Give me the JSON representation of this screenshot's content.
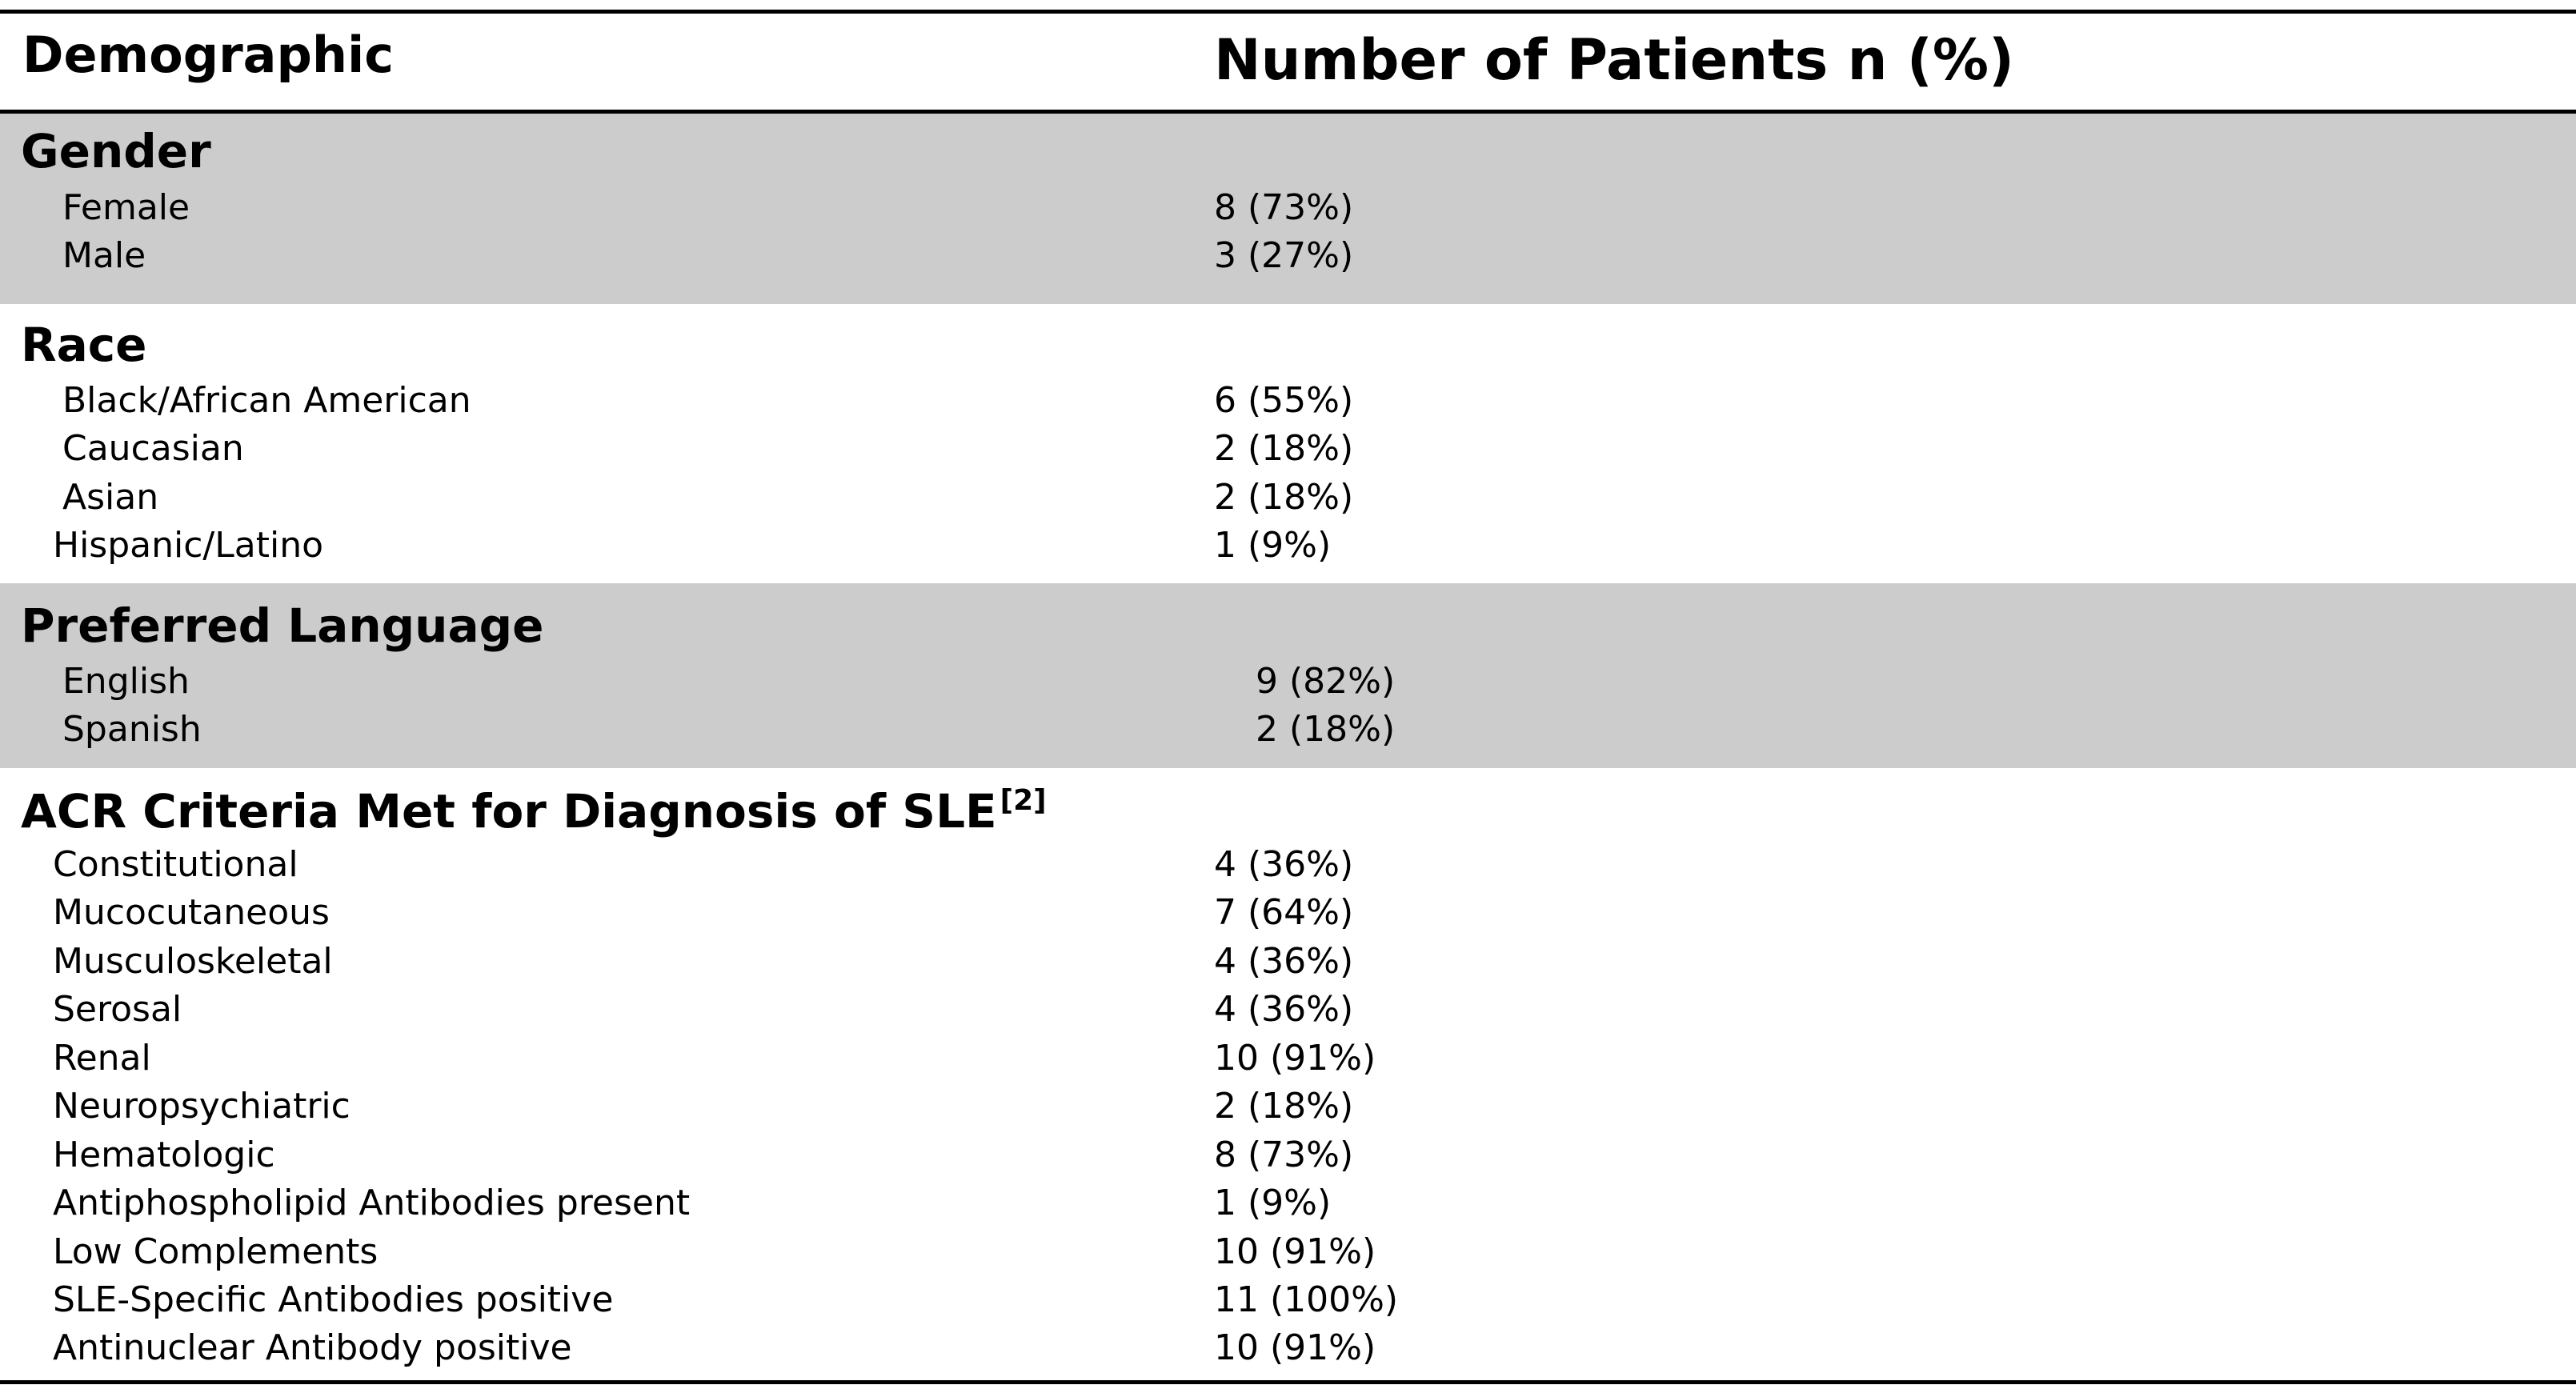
{
  "table": {
    "headers": {
      "demographic": "Demographic",
      "patients": "Number of Patients n (%)"
    },
    "sections": [
      {
        "title": "Gender",
        "rows": [
          {
            "label": "Female",
            "value": "8 (73%)"
          },
          {
            "label": "Male",
            "value": "3 (27%)"
          }
        ]
      },
      {
        "title": "Race",
        "rows": [
          {
            "label": "Black/African American",
            "value": "6 (55%)"
          },
          {
            "label": "Caucasian",
            "value": "2 (18%)"
          },
          {
            "label": "Asian",
            "value": "2 (18%)"
          },
          {
            "label": "Hispanic/Latino",
            "value": "1 (9%)"
          }
        ]
      },
      {
        "title": "Preferred Language",
        "rows": [
          {
            "label": "English",
            "value": "9 (82%)"
          },
          {
            "label": "Spanish",
            "value": "2 (18%)"
          }
        ]
      },
      {
        "title": "ACR Criteria Met for Diagnosis of SLE",
        "title_sup": "[2]",
        "rows": [
          {
            "label": "Constitutional",
            "value": "4 (36%)"
          },
          {
            "label": "Mucocutaneous",
            "value": "7 (64%)"
          },
          {
            "label": "Musculoskeletal",
            "value": "4 (36%)"
          },
          {
            "label": "Serosal",
            "value": "4 (36%)"
          },
          {
            "label": "Renal",
            "value": "10 (91%)"
          },
          {
            "label": "Neuropsychiatric",
            "value": "2 (18%)"
          },
          {
            "label": "Hematologic",
            "value": "8 (73%)"
          },
          {
            "label": "Antiphospholipid Antibodies present",
            "value": "1 (9%)"
          },
          {
            "label": "Low Complements",
            "value": "10 (91%)"
          },
          {
            "label": "SLE-Specific Antibodies positive",
            "value": "11 (100%)"
          },
          {
            "label": "Antinuclear Antibody positive",
            "value": "10 (91%)"
          }
        ]
      }
    ]
  },
  "colors": {
    "shaded_band": "#cccccc",
    "rule": "#000000",
    "text": "#000000"
  }
}
